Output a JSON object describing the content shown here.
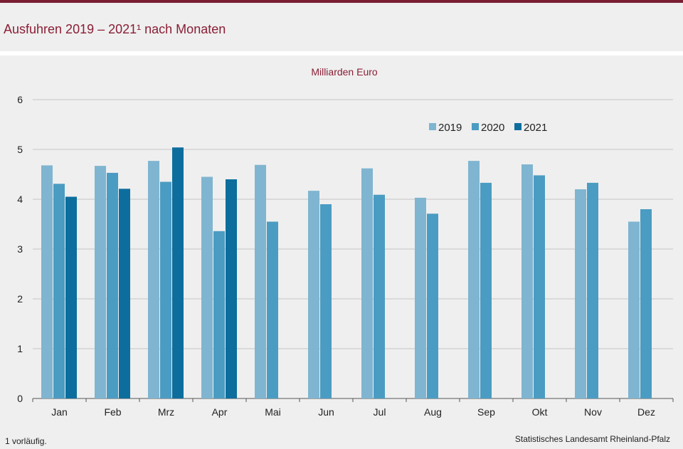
{
  "title": "Ausfuhren 2019 – 2021¹ nach Monaten",
  "footnote": "1 vorläufig.",
  "source": "Statistisches Landesamt  Rheinland-Pfalz",
  "colors": {
    "accent": "#8a1e35",
    "s2019": "#7fb5d0",
    "s2020": "#4b9cc2",
    "s2021": "#0d6e9d"
  },
  "chart_data": {
    "type": "bar",
    "title": "",
    "ylabel": "Milliarden Euro",
    "xlabel": "",
    "ylim": [
      0,
      6
    ],
    "yticks": [
      0,
      1,
      2,
      3,
      4,
      5,
      6
    ],
    "grid": true,
    "legend": "top-right",
    "categories": [
      "Jan",
      "Feb",
      "Mrz",
      "Apr",
      "Mai",
      "Jun",
      "Jul",
      "Aug",
      "Sep",
      "Okt",
      "Nov",
      "Dez"
    ],
    "series": [
      {
        "name": "2019",
        "color": "#7fb5d0",
        "values": [
          4.68,
          4.67,
          4.77,
          4.45,
          4.69,
          4.17,
          4.62,
          4.03,
          4.77,
          4.7,
          4.2,
          3.55
        ]
      },
      {
        "name": "2020",
        "color": "#4b9cc2",
        "values": [
          4.31,
          4.53,
          4.35,
          3.36,
          3.55,
          3.9,
          4.09,
          3.71,
          4.33,
          4.48,
          4.33,
          3.8
        ]
      },
      {
        "name": "2021",
        "color": "#0d6e9d",
        "values": [
          4.05,
          4.21,
          5.04,
          4.4,
          null,
          null,
          null,
          null,
          null,
          null,
          null,
          null
        ]
      }
    ]
  }
}
